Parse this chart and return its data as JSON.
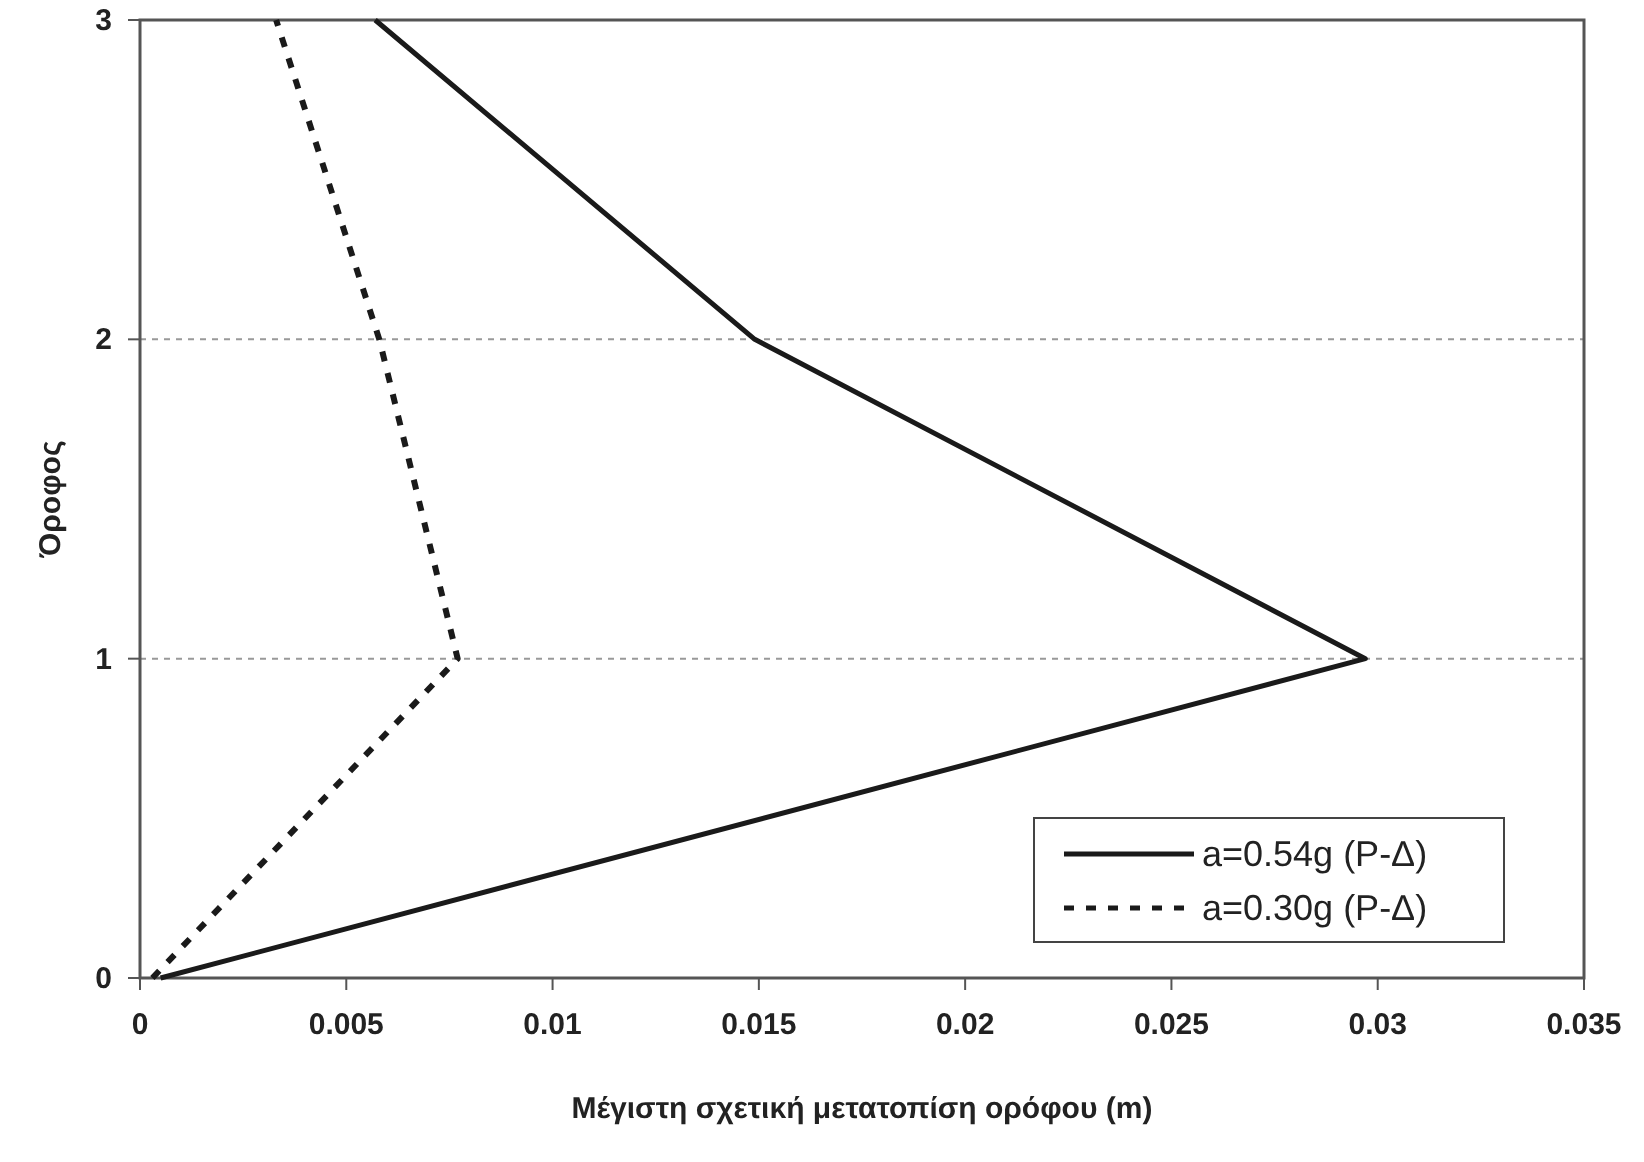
{
  "chart_data": {
    "type": "line",
    "xlabel": "Μέγιστη σχετική μετατοπίση ορόφου (m)",
    "ylabel": "Όροφος",
    "xlim": [
      0,
      0.035
    ],
    "xticks": [
      0,
      0.005,
      0.01,
      0.015,
      0.02,
      0.025,
      0.03,
      0.035
    ],
    "ylim": [
      0,
      3
    ],
    "yticks": [
      0,
      1,
      2,
      3
    ],
    "grid": "y",
    "legend": "bottom right",
    "series": [
      {
        "name": "a=0.54g (P-Δ)",
        "color": "#1a1a1a",
        "line_style": "solid",
        "x": [
          0.0005,
          0.0297,
          0.0149,
          0.0057
        ],
        "values": [
          0,
          1,
          2,
          3
        ]
      },
      {
        "name": "a=0.30g (P-Δ)",
        "color": "#1a1a1a",
        "line_style": "dashed",
        "x": [
          0.0003,
          0.0077,
          0.0058,
          0.0033
        ],
        "values": [
          0,
          1,
          2,
          3
        ]
      }
    ]
  }
}
